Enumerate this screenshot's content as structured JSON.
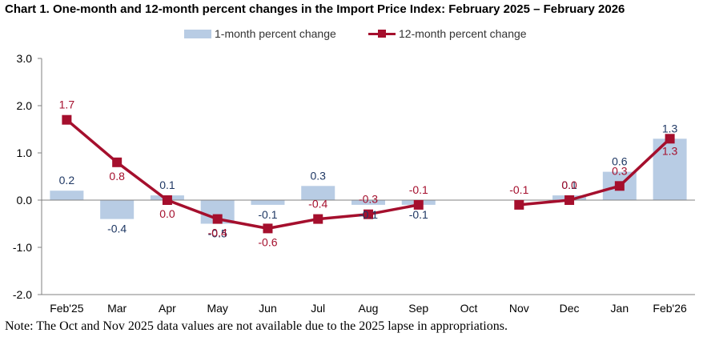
{
  "chart_data": {
    "type": "bar+line",
    "title": "Chart 1. One-month and 12-month percent changes in the Import Price Index: February 2025 – February 2026",
    "categories": [
      "Feb'25",
      "Mar",
      "Apr",
      "May",
      "Jun",
      "Jul",
      "Aug",
      "Sep",
      "Oct",
      "Nov",
      "Dec",
      "Jan",
      "Feb'26"
    ],
    "series": [
      {
        "name": "1-month percent change",
        "kind": "bar",
        "color": "#b8cce4",
        "values": [
          0.2,
          -0.4,
          0.1,
          -0.5,
          -0.1,
          0.3,
          -0.1,
          -0.1,
          null,
          null,
          0.1,
          0.6,
          1.3
        ],
        "labels": [
          "0.2",
          "-0.4",
          "0.1",
          "-0.5",
          "-0.1",
          "0.3",
          "-0.1",
          "-0.1",
          null,
          null,
          "0.1",
          "0.6",
          "1.3"
        ]
      },
      {
        "name": "12-month percent change",
        "kind": "line",
        "color": "#a50f2d",
        "values": [
          1.7,
          0.8,
          0.0,
          -0.4,
          -0.6,
          -0.4,
          -0.3,
          -0.1,
          null,
          -0.1,
          0.0,
          0.3,
          1.3
        ],
        "labels": [
          "1.7",
          "0.8",
          "0.0",
          "-0.4",
          "-0.6",
          "-0.4",
          "-0.3",
          "-0.1",
          null,
          "-0.1",
          "0.0",
          "0.3",
          "1.3"
        ]
      }
    ],
    "ylim": [
      -2.0,
      3.0
    ],
    "yticks": [
      3.0,
      2.0,
      1.0,
      0.0,
      -1.0,
      -2.0
    ],
    "ytick_labels": [
      "3.0",
      "2.0",
      "1.0",
      "0.0",
      "-1.0",
      "-2.0"
    ],
    "xlabel": "",
    "ylabel": "",
    "grid": false,
    "legend_position": "top-center"
  },
  "note": "Note: The Oct and Nov 2025 data values are not available due to the 2025 lapse in appropriations."
}
